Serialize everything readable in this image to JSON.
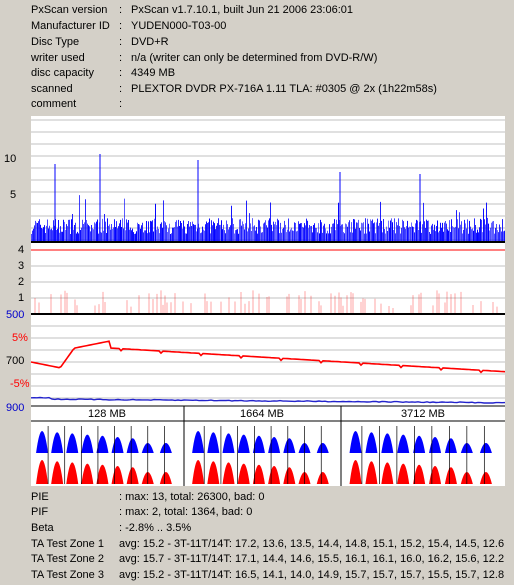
{
  "info": [
    {
      "label": "PxScan version",
      "value": "PxScan v1.7.10.1, built Jun 21 2006 23:06:01"
    },
    {
      "label": "Manufacturer ID",
      "value": "YUDEN000-T03-00"
    },
    {
      "label": "Disc Type",
      "value": "DVD+R"
    },
    {
      "label": "writer used",
      "value": "n/a (writer can only be determined from DVD-R/W)"
    },
    {
      "label": "disc capacity",
      "value": "4349 MB"
    },
    {
      "label": "scanned",
      "value": "PLEXTOR DVDR PX-716A 1.11 TLA: #0305 @ 2x (1h22m58s)"
    },
    {
      "label": "comment",
      "value": ""
    }
  ],
  "separator": ":",
  "chart_labels": {
    "pie_axis": [
      "10",
      "5"
    ],
    "pif_axis": [
      "4",
      "3",
      "2",
      "1"
    ],
    "jitter_top": "500",
    "beta_pos": "5%",
    "jitter_mid": "700",
    "beta_neg": "-5%",
    "jitter_bottom": "900",
    "zones": [
      "128 MB",
      "1664 MB",
      "3712 MB"
    ]
  },
  "colors": {
    "pie": "#0000ff",
    "pif": "#ff0000",
    "beta": "#ff0000",
    "jitter": "#2222cc",
    "ta_blue": "#0000ff",
    "ta_red": "#ff0000"
  },
  "stats": [
    {
      "label": "PIE",
      "value": ": max: 13, total: 26300, bad: 0"
    },
    {
      "label": "PIF",
      "value": ": max: 2, total: 1364, bad: 0"
    },
    {
      "label": "Beta",
      "value": ": -2.8% .. 3.5%"
    },
    {
      "label": "TA Test Zone 1",
      "value": "avg: 15.2 - 3T-11T/14T: 17.2, 13.6, 13.5, 14.4, 14.8, 15.1, 15.2, 15.4, 14.5, 12.6"
    },
    {
      "label": "TA Test Zone 2",
      "value": "avg: 15.7 - 3T-11T/14T: 17.1, 14.4, 14.6, 15.5, 16.1, 16.1, 16.0, 16.2, 15.6, 12.2"
    },
    {
      "label": "TA Test Zone 3",
      "value": "avg: 15.2 - 3T-11T/14T: 16.5, 14.1, 14.0, 14.9, 15.7, 15.7, 15.7, 15.5, 15.7, 12.8"
    }
  ]
}
